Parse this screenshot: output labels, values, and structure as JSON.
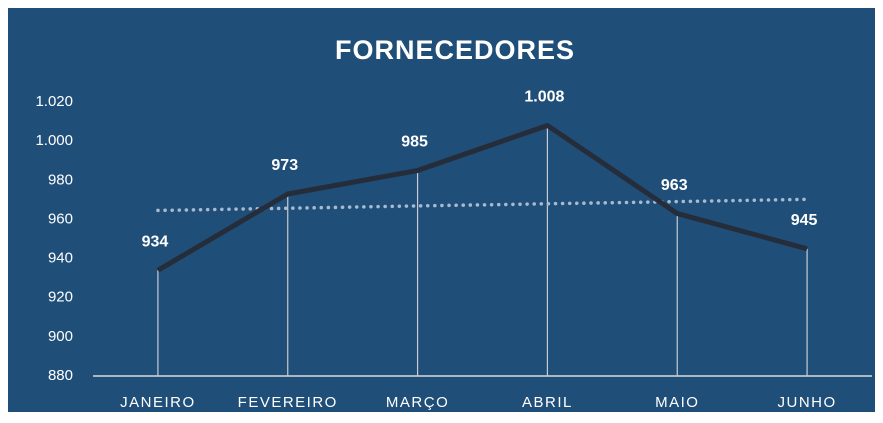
{
  "chart_data": {
    "type": "line",
    "title": "FORNECEDORES",
    "categories": [
      "JANEIRO",
      "FEVEREIRO",
      "MARÇO",
      "ABRIL",
      "MAIO",
      "JUNHO"
    ],
    "values": [
      934,
      973,
      985,
      1008,
      963,
      945
    ],
    "value_labels": [
      "934",
      "973",
      "985",
      "1.008",
      "963",
      "945"
    ],
    "color": "#262d3a",
    "drop_lines": true,
    "trendline": {
      "values": [
        964.6,
        965.7,
        966.9,
        968,
        969.1,
        970.3
      ],
      "color": "#a7bad0",
      "style": "dotted"
    },
    "ylim": [
      880,
      1020
    ],
    "yticks": [
      {
        "value": 880,
        "label": "880"
      },
      {
        "value": 900,
        "label": "900"
      },
      {
        "value": 920,
        "label": "920"
      },
      {
        "value": 940,
        "label": "940"
      },
      {
        "value": 960,
        "label": "960"
      },
      {
        "value": 980,
        "label": "980"
      },
      {
        "value": 1000,
        "label": "1.000"
      },
      {
        "value": 1020,
        "label": "1.020"
      }
    ],
    "grid": false
  }
}
